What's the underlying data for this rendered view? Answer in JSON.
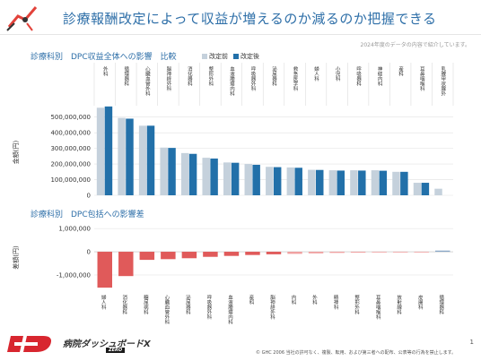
{
  "header": {
    "title": "診療報酬改定によって収益が増えるのか減るのか把握できる",
    "note": "2024年度のデータの内容で紹介しています。"
  },
  "colors": {
    "accent": "#2e6fa8",
    "before": "#c5d1dc",
    "after": "#2270a9",
    "diff": "#e05a5a",
    "diffLight": "#f0a0a0",
    "diffPos": "#8aa8c8"
  },
  "chart_data": [
    {
      "type": "bar",
      "title": "診療科別　DPC収益全体への影響　比較",
      "ylabel": "金額(円)",
      "ylim": [
        0,
        550000000
      ],
      "yticks": [
        0,
        100000000,
        200000000,
        300000000,
        400000000,
        500000000
      ],
      "ytick_labels": [
        "0",
        "100,000,000",
        "200,000,000",
        "300,000,000",
        "400,000,000",
        "500,000,000"
      ],
      "categories": [
        "外科",
        "循環器科",
        "心臓血管外科",
        "脳神経外科",
        "消化器科",
        "整形外科",
        "血液腫瘍内科",
        "呼吸器外科",
        "泌尿器科",
        "救急医学科",
        "婦人科",
        "小児科",
        "呼吸器科",
        "神経内科",
        "産科",
        "耳鼻咽喉科",
        "乳腺甲状腺外"
      ],
      "series": [
        {
          "name": "改定前",
          "values": [
            560000000,
            495000000,
            445000000,
            305000000,
            270000000,
            240000000,
            210000000,
            200000000,
            182000000,
            178000000,
            163000000,
            160000000,
            160000000,
            160000000,
            150000000,
            80000000,
            42000000
          ]
        },
        {
          "name": "改定後",
          "values": [
            568000000,
            490000000,
            445000000,
            303000000,
            265000000,
            235000000,
            208000000,
            195000000,
            180000000,
            176000000,
            162000000,
            158000000,
            158000000,
            157000000,
            150000000,
            80000000,
            0
          ]
        }
      ],
      "legend": "top"
    },
    {
      "type": "bar",
      "title": "診療科別　DPC包括への影響差",
      "ylabel": "差額(円)",
      "ylim": [
        -1700000,
        1200000
      ],
      "yticks": [
        -1000000,
        0,
        1000000
      ],
      "ytick_labels": [
        "-1,000,000",
        "0",
        "1,000,000"
      ],
      "categories": [
        "婦人科",
        "消化器科",
        "糖尿病科",
        "心臓血管外科",
        "泌尿器科",
        "呼吸器外科",
        "血液腫瘍内科",
        "産科",
        "脳神経外科",
        "内科",
        "外科",
        "精神科",
        "整形外科",
        "耳鼻咽喉科",
        "放射線科",
        "皮膚科",
        "循環器科"
      ],
      "values": [
        -1550000,
        -1050000,
        -350000,
        -320000,
        -280000,
        -220000,
        -180000,
        -140000,
        -110000,
        -90000,
        -70000,
        -50000,
        -40000,
        -30000,
        -20000,
        -10000,
        50000
      ]
    }
  ],
  "footer": {
    "product": "病院ダッシュボードΧ",
    "sub": "ZERO",
    "copyright": "© GHC 2006 当社の許可なく、複製、転用、および第三者への配布、公表等の行為を禁止します。",
    "page": "1"
  }
}
